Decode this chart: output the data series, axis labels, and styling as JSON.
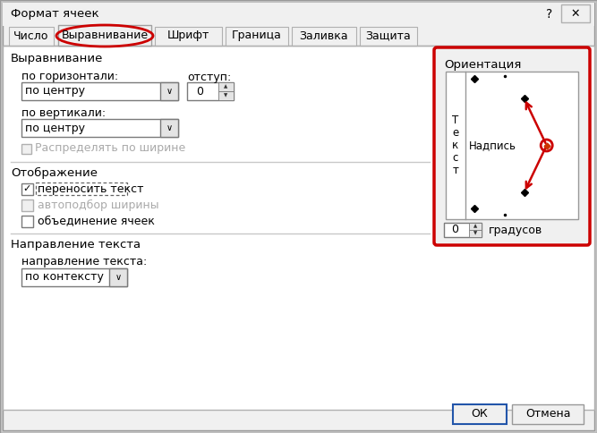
{
  "title": "Формат ячеек",
  "bg_color": "#f0f0f0",
  "white": "#ffffff",
  "red_color": "#cc0000",
  "dark_text": "#000000",
  "gray_text": "#888888",
  "tabs": [
    "Число",
    "Выравнивание",
    "Шрифт",
    "Граница",
    "Заливка",
    "Защита"
  ],
  "active_tab": 1,
  "section1_title": "Выравнивание",
  "horiz_label": "по горизонтали:",
  "horiz_value": "по центру",
  "otst_label": "отступ:",
  "otst_value": "0",
  "vert_label": "по вертикали:",
  "vert_value": "по центру",
  "check3_label": "Распределять по ширине",
  "section2_title": "Отображение",
  "check1_label": "переносить текст",
  "check2_label": "автоподбор ширины",
  "check4_label": "объединение ячеек",
  "section3_title": "Направление текста",
  "dir_label": "направление текста:",
  "dir_value": "по контексту",
  "orient_title": "Ориентация",
  "orient_text_vert": "Т\nе\nк\nс\nт",
  "orient_nadpis": "Надпись",
  "orient_degrees": "0",
  "orient_grad": "градусов",
  "ok_btn": "ОК",
  "cancel_btn": "Отмена",
  "question_mark": "?"
}
